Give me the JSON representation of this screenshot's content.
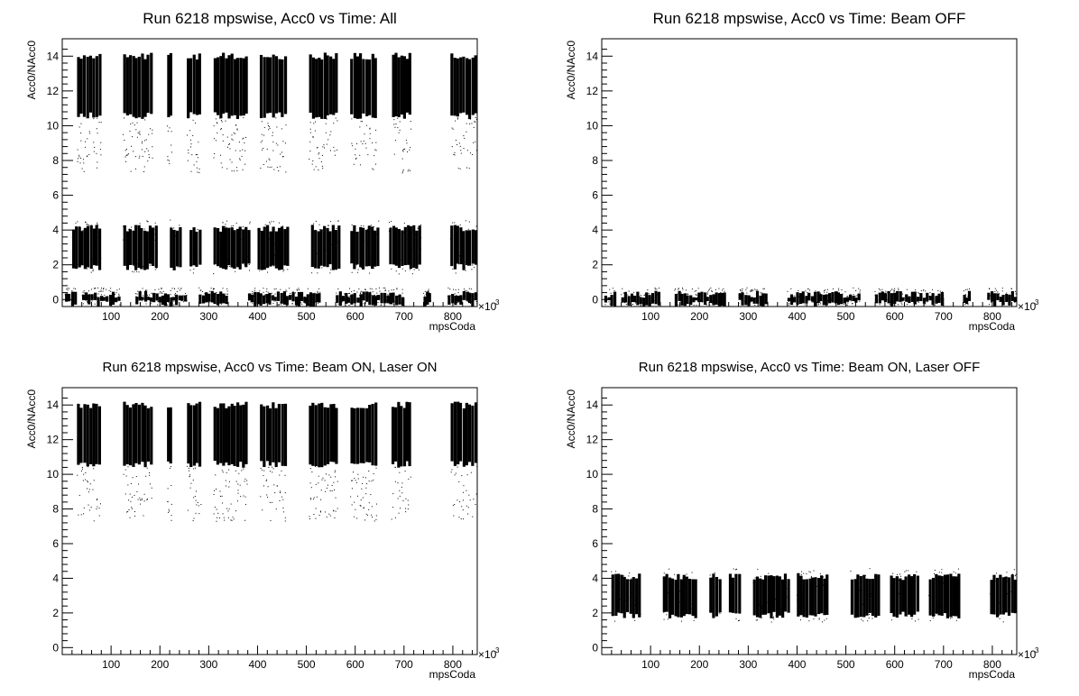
{
  "chart_data": [
    {
      "type": "scatter",
      "title": "Run 6218 mpswise, Acc0 vs Time: All",
      "xlabel": "mpsCoda",
      "ylabel": "Acc0/NAcc0",
      "x_multiplier": "×10",
      "x_multiplier_exp": "3",
      "xlim": [
        0,
        850
      ],
      "ylim": [
        -0.4,
        15
      ],
      "xticks": [
        100,
        200,
        300,
        400,
        500,
        600,
        700,
        800
      ],
      "yticks": [
        0,
        2,
        4,
        6,
        8,
        10,
        12,
        14
      ],
      "series": [
        {
          "band": "laser-on",
          "y_range": [
            10.5,
            14.2
          ],
          "x_clusters": [
            [
              30,
              80
            ],
            [
              125,
              185
            ],
            [
              215,
              225
            ],
            [
              255,
              285
            ],
            [
              310,
              380
            ],
            [
              405,
              460
            ],
            [
              505,
              565
            ],
            [
              590,
              645
            ],
            [
              675,
              715
            ],
            [
              795,
              850
            ]
          ]
        },
        {
          "band": "laser-off",
          "y_range": [
            1.8,
            4.3
          ],
          "x_clusters": [
            [
              20,
              80
            ],
            [
              125,
              195
            ],
            [
              220,
              245
            ],
            [
              260,
              285
            ],
            [
              310,
              385
            ],
            [
              400,
              465
            ],
            [
              510,
              570
            ],
            [
              590,
              650
            ],
            [
              670,
              735
            ],
            [
              795,
              850
            ]
          ]
        },
        {
          "band": "beam-off",
          "y_range": [
            -0.3,
            0.5
          ],
          "x_clusters": [
            [
              5,
              30
            ],
            [
              40,
              120
            ],
            [
              150,
              255
            ],
            [
              280,
              340
            ],
            [
              380,
              530
            ],
            [
              560,
              700
            ],
            [
              740,
              755
            ],
            [
              790,
              850
            ]
          ]
        }
      ]
    },
    {
      "type": "scatter",
      "title": "Run 6218 mpswise, Acc0 vs Time: Beam OFF",
      "xlabel": "mpsCoda",
      "ylabel": "Acc0/NAcc0",
      "x_multiplier": "×10",
      "x_multiplier_exp": "3",
      "xlim": [
        0,
        850
      ],
      "ylim": [
        -0.4,
        15
      ],
      "xticks": [
        100,
        200,
        300,
        400,
        500,
        600,
        700,
        800
      ],
      "yticks": [
        0,
        2,
        4,
        6,
        8,
        10,
        12,
        14
      ],
      "series": [
        {
          "band": "beam-off",
          "y_range": [
            -0.3,
            0.5
          ],
          "x_clusters": [
            [
              5,
              30
            ],
            [
              40,
              120
            ],
            [
              150,
              255
            ],
            [
              280,
              340
            ],
            [
              380,
              530
            ],
            [
              560,
              700
            ],
            [
              740,
              755
            ],
            [
              790,
              850
            ]
          ]
        }
      ]
    },
    {
      "type": "scatter",
      "title": "Run 6218 mpswise, Acc0 vs Time: Beam ON, Laser ON",
      "xlabel": "mpsCoda",
      "ylabel": "Acc0/NAcc0",
      "x_multiplier": "×10",
      "x_multiplier_exp": "3",
      "xlim": [
        0,
        850
      ],
      "ylim": [
        -0.4,
        15
      ],
      "xticks": [
        100,
        200,
        300,
        400,
        500,
        600,
        700,
        800
      ],
      "yticks": [
        0,
        2,
        4,
        6,
        8,
        10,
        12,
        14
      ],
      "series": [
        {
          "band": "laser-on",
          "y_range": [
            10.5,
            14.2
          ],
          "x_clusters": [
            [
              30,
              80
            ],
            [
              125,
              185
            ],
            [
              215,
              225
            ],
            [
              255,
              285
            ],
            [
              310,
              380
            ],
            [
              405,
              460
            ],
            [
              505,
              565
            ],
            [
              590,
              645
            ],
            [
              675,
              715
            ],
            [
              795,
              850
            ]
          ]
        }
      ]
    },
    {
      "type": "scatter",
      "title": "Run 6218 mpswise, Acc0 vs Time: Beam ON, Laser OFF",
      "xlabel": "mpsCoda",
      "ylabel": "Acc0/NAcc0",
      "x_multiplier": "×10",
      "x_multiplier_exp": "3",
      "xlim": [
        0,
        850
      ],
      "ylim": [
        -0.4,
        15
      ],
      "xticks": [
        100,
        200,
        300,
        400,
        500,
        600,
        700,
        800
      ],
      "yticks": [
        0,
        2,
        4,
        6,
        8,
        10,
        12,
        14
      ],
      "series": [
        {
          "band": "laser-off",
          "y_range": [
            1.8,
            4.3
          ],
          "x_clusters": [
            [
              20,
              80
            ],
            [
              125,
              195
            ],
            [
              220,
              245
            ],
            [
              260,
              285
            ],
            [
              310,
              385
            ],
            [
              400,
              465
            ],
            [
              510,
              570
            ],
            [
              590,
              650
            ],
            [
              670,
              735
            ],
            [
              795,
              850
            ]
          ]
        }
      ]
    }
  ]
}
